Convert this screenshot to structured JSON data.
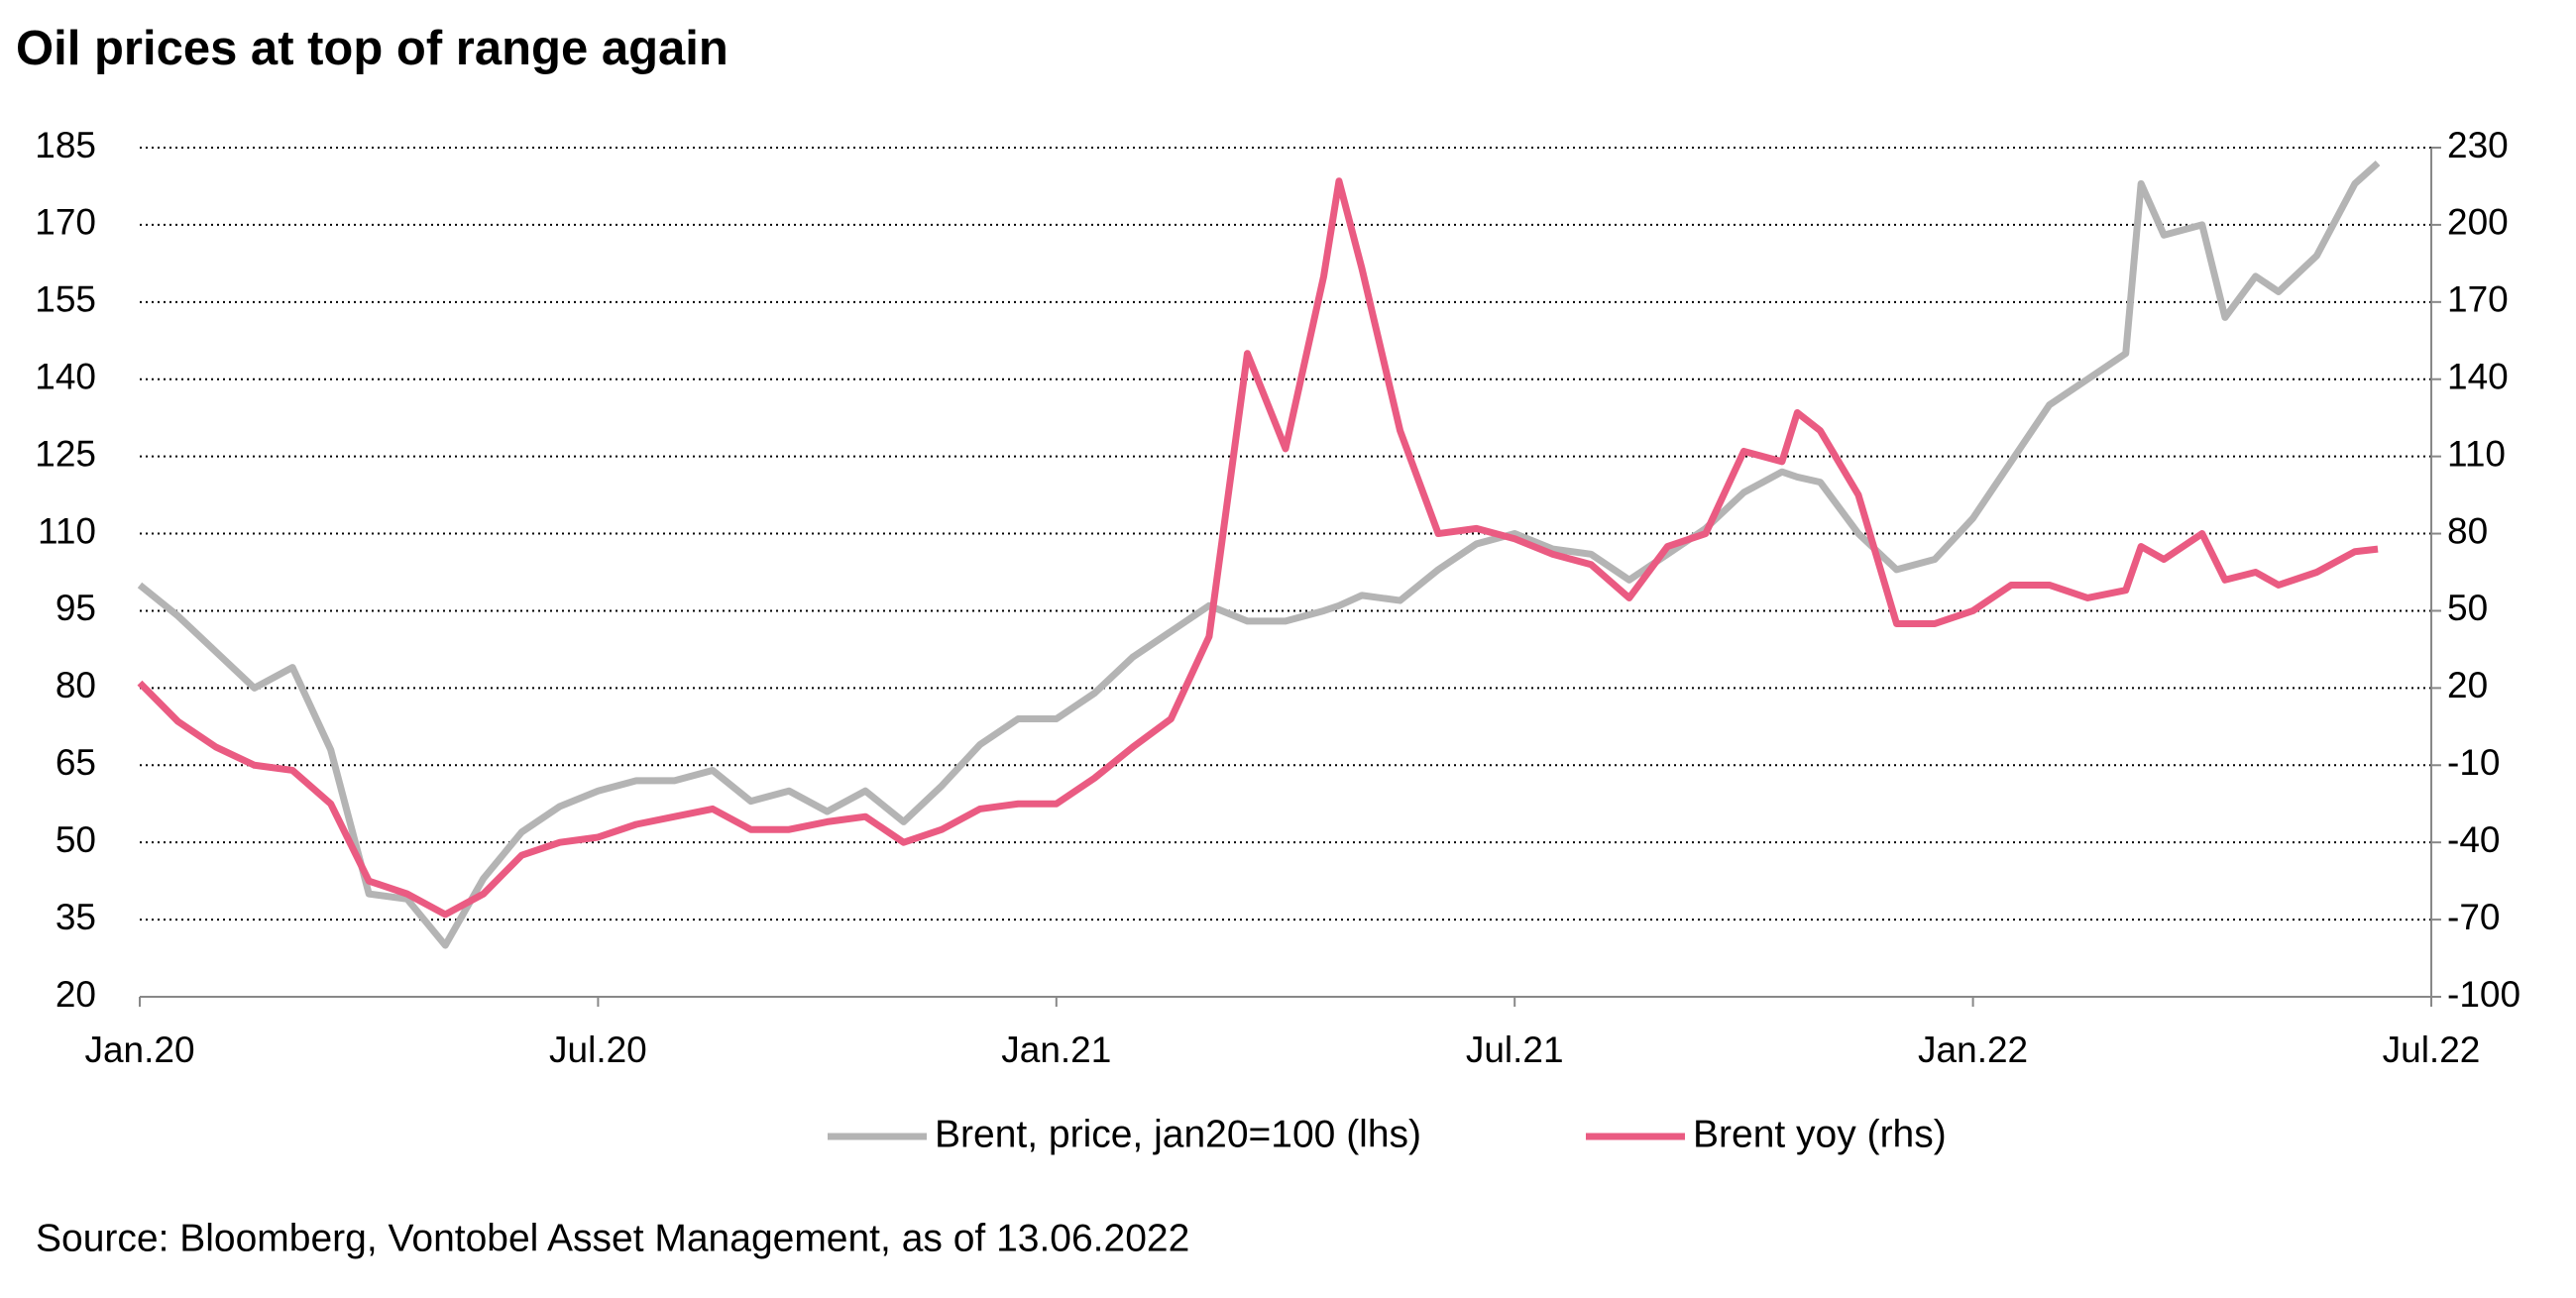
{
  "chart_data": {
    "type": "line",
    "title": "Oil prices at top of range again",
    "source": "Source: Bloomberg, Vontobel Asset Management, as of 13.06.2022",
    "x": [
      0,
      0.5,
      1,
      1.5,
      2,
      2.5,
      3,
      3.5,
      4,
      4.5,
      5,
      5.5,
      6,
      6.5,
      7,
      7.5,
      8,
      8.5,
      9,
      9.5,
      10,
      10.5,
      11,
      11.5,
      12,
      12.5,
      13,
      13.5,
      14,
      14.5,
      15,
      15.5,
      15.7,
      16,
      16.5,
      17,
      17.5,
      18,
      18.5,
      19,
      19.5,
      20,
      20.5,
      21,
      21.5,
      21.7,
      22,
      22.5,
      23,
      23.5,
      24,
      24.5,
      25,
      25.5,
      26,
      26.2,
      26.5,
      27,
      27.3,
      27.7,
      28,
      28.5,
      29,
      29.3
    ],
    "xlim": [
      0,
      30
    ],
    "xticks": [
      {
        "value": 0,
        "label": "Jan.20"
      },
      {
        "value": 6,
        "label": "Jul.20"
      },
      {
        "value": 12,
        "label": "Jan.21"
      },
      {
        "value": 18,
        "label": "Jul.21"
      },
      {
        "value": 24,
        "label": "Jan.22"
      },
      {
        "value": 30,
        "label": "Jul.22"
      }
    ],
    "ylim": [
      20,
      185
    ],
    "yticks": [
      20,
      35,
      50,
      65,
      80,
      95,
      110,
      125,
      140,
      155,
      170,
      185
    ],
    "y2lim": [
      -100,
      230
    ],
    "y2ticks": [
      -100,
      -70,
      -40,
      -10,
      20,
      50,
      80,
      110,
      140,
      170,
      200,
      230
    ],
    "grid": true,
    "series": [
      {
        "name": "Brent, price, jan20=100 (lhs)",
        "color": "#b4b4b4",
        "values": [
          100,
          94,
          87,
          80,
          84,
          68,
          40,
          39,
          30,
          43,
          52,
          57,
          60,
          62,
          62,
          64,
          58,
          60,
          56,
          60,
          54,
          61,
          69,
          74,
          74,
          79,
          86,
          91,
          96,
          93,
          93,
          95,
          96,
          98,
          97,
          103,
          108,
          110,
          107,
          106,
          101,
          106,
          111,
          118,
          122,
          121,
          120,
          110,
          103,
          105,
          113,
          124,
          135,
          140,
          145,
          178,
          168,
          170,
          152,
          160,
          157,
          164,
          178,
          182
        ]
      },
      {
        "name": "Brent yoy (rhs)",
        "color": "#ea5b82",
        "axis": "y2",
        "values": [
          22,
          7,
          -3,
          -10,
          -12,
          -25,
          -55,
          -60,
          -68,
          -60,
          -45,
          -40,
          -38,
          -33,
          -30,
          -27,
          -35,
          -35,
          -32,
          -30,
          -40,
          -35,
          -27,
          -25,
          -25,
          -15,
          -3,
          8,
          40,
          150,
          113,
          180,
          217,
          183,
          120,
          80,
          82,
          78,
          72,
          68,
          55,
          75,
          80,
          112,
          108,
          127,
          120,
          95,
          45,
          45,
          50,
          60,
          60,
          55,
          58,
          75,
          70,
          80,
          62,
          65,
          60,
          65,
          73,
          74
        ]
      }
    ]
  }
}
